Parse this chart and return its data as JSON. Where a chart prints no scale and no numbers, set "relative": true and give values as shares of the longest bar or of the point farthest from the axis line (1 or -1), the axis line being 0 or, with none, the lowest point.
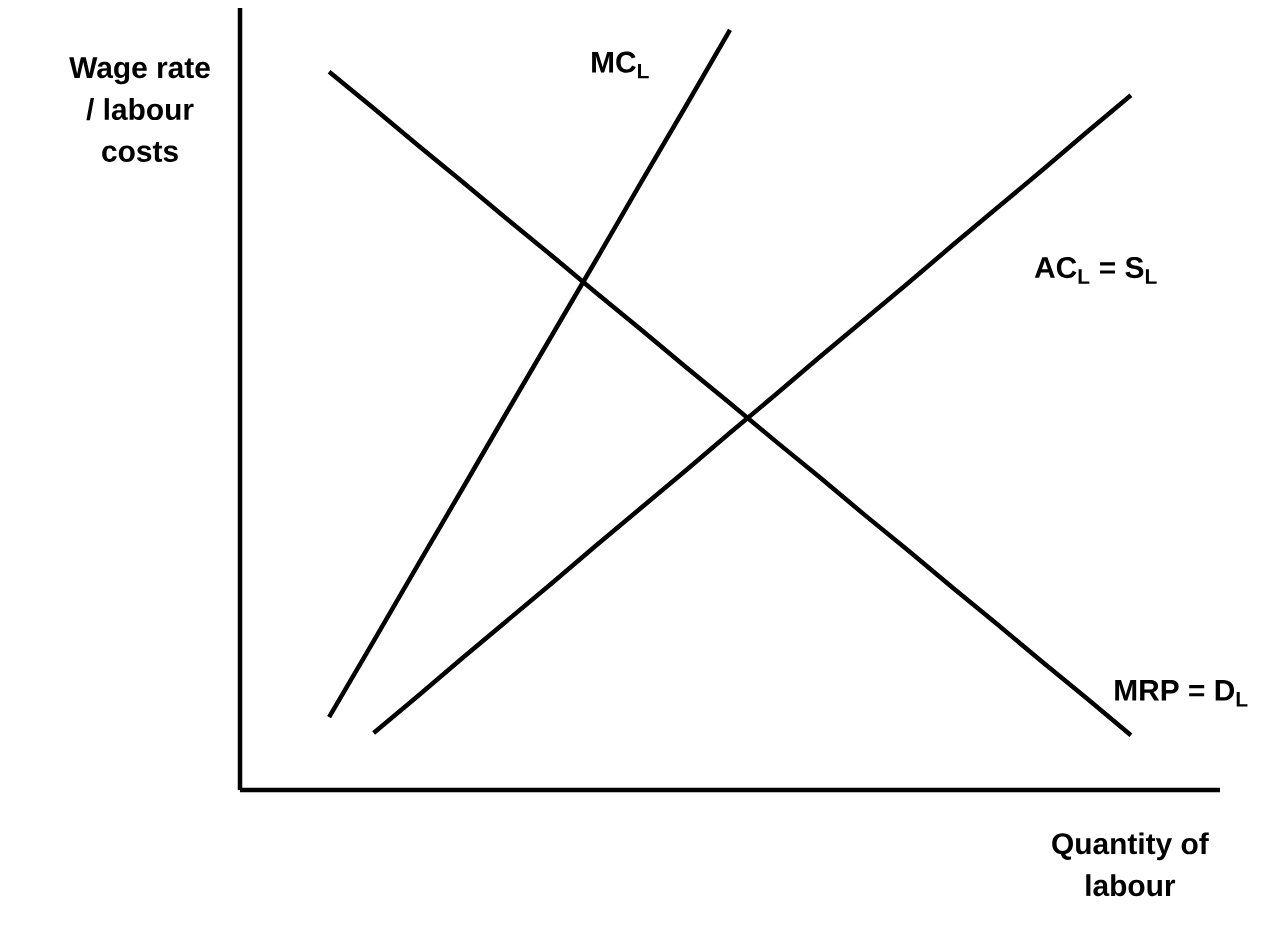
{
  "chart_data": {
    "type": "line",
    "relative": true,
    "xlabel": "Quantity of labour",
    "ylabel": "Wage rate / labour costs",
    "categories": [
      null,
      null,
      null,
      null,
      null,
      null,
      null,
      null,
      null,
      null,
      null,
      null,
      null,
      null,
      null,
      null,
      null,
      null,
      null,
      null,
      null,
      null,
      null
    ],
    "series": [
      {
        "name": "MRP = D$_{L}$",
        "color": "#000000",
        "values": [
          null,
          null,
          0.945,
          0.897,
          0.848,
          0.8,
          0.751,
          0.703,
          0.654,
          0.606,
          0.557,
          0.509,
          0.46,
          0.412,
          0.363,
          0.315,
          0.266,
          0.218,
          0.169,
          0.121,
          0.072,
          null,
          null
        ]
      },
      {
        "name": "MC$_{L}$",
        "color": "#000000",
        "values": [
          null,
          null,
          0.096,
          0.196,
          0.297,
          0.397,
          0.498,
          0.598,
          0.698,
          0.799,
          0.899,
          1.0,
          null,
          null,
          null,
          null,
          null,
          null,
          null,
          null,
          null,
          null,
          null
        ]
      },
      {
        "name": "AC$_{L}$ = S$_{L}$",
        "color": "#000000",
        "values": [
          null,
          null,
          null,
          0.075,
          0.124,
          0.174,
          0.223,
          0.272,
          0.322,
          0.371,
          0.42,
          0.47,
          0.519,
          0.569,
          0.618,
          0.667,
          0.717,
          0.766,
          0.815,
          0.865,
          0.914,
          null,
          null
        ]
      }
    ]
  }
}
